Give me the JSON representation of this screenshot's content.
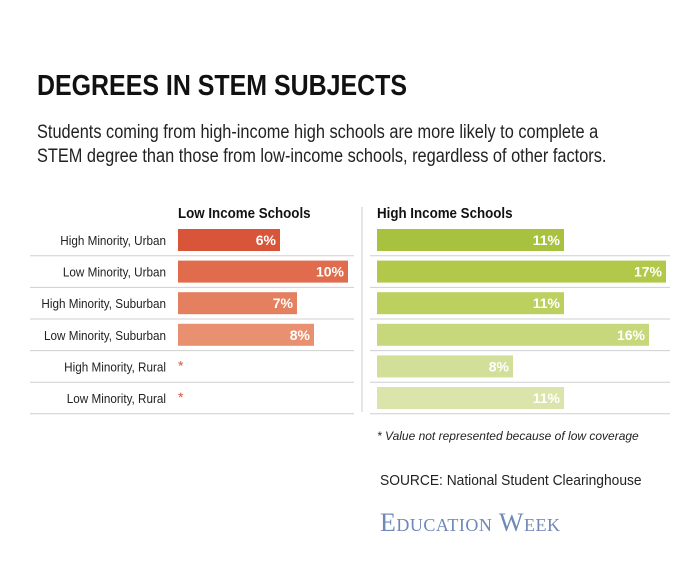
{
  "header": {
    "title": "DEGREES IN STEM SUBJECTS",
    "subtitle_line1": "Students coming from high-income high schools are more likely to complete a",
    "subtitle_line2": "STEM degree than those from low-income schools, regardless of other factors."
  },
  "colors": {
    "low_income": [
      "#d9553a",
      "#e06c4d",
      "#e47f60",
      "#e8906f"
    ],
    "high_income": [
      "#a8c23f",
      "#b1c84a",
      "#bcd060",
      "#c7d87c",
      "#d2df98",
      "#dbe5ab"
    ],
    "divider": "#cccccc",
    "bar_label": "#ffffff",
    "asterisk": "#d9553a",
    "logo": "#6f88b5"
  },
  "chart_data": {
    "type": "bar",
    "orientation": "horizontal",
    "categories": [
      "High Minority, Urban",
      "Low Minority, Urban",
      "High Minority, Suburban",
      "Low Minority, Suburban",
      "High Minority, Rural",
      "Low Minority, Rural"
    ],
    "series": [
      {
        "name": "Low Income Schools",
        "values": [
          6,
          10,
          7,
          8,
          null,
          null
        ],
        "labels": [
          "6%",
          "10%",
          "7%",
          "8%",
          "*",
          "*"
        ]
      },
      {
        "name": "High Income Schools",
        "values": [
          11,
          17,
          11,
          16,
          8,
          11
        ],
        "labels": [
          "11%",
          "17%",
          "11%",
          "16%",
          "8%",
          "11%"
        ]
      }
    ],
    "unit": "%",
    "xlim": [
      0,
      17
    ]
  },
  "footnote": "* Value not represented because of low coverage",
  "source": "SOURCE: National Student Clearinghouse",
  "logo_text": "Education Week"
}
